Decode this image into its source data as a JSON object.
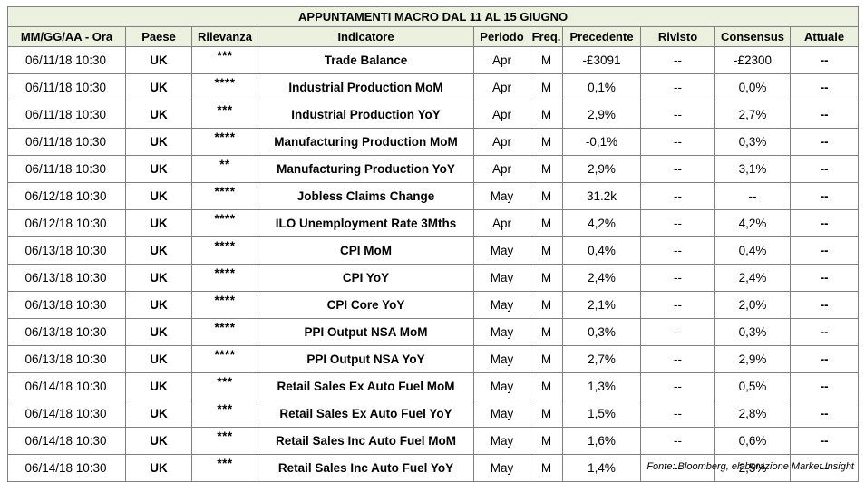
{
  "title": "APPUNTAMENTI MACRO DAL 11 AL 15 GIUGNO",
  "columns": [
    "MM/GG/AA - Ora",
    "Paese",
    "Rilevanza",
    "Indicatore",
    "Periodo",
    "Freq.",
    "Precedente",
    "Rivisto",
    "Consensus",
    "Attuale"
  ],
  "rows": [
    {
      "date": "06/11/18 10:30",
      "country": "UK",
      "relevance": "***",
      "indicator": "Trade Balance",
      "period": "Apr",
      "freq": "M",
      "previous": "-£3091",
      "revised": "--",
      "consensus": "-£2300",
      "actual": "--"
    },
    {
      "date": "06/11/18 10:30",
      "country": "UK",
      "relevance": "****",
      "indicator": "Industrial Production MoM",
      "period": "Apr",
      "freq": "M",
      "previous": "0,1%",
      "revised": "--",
      "consensus": "0,0%",
      "actual": "--"
    },
    {
      "date": "06/11/18 10:30",
      "country": "UK",
      "relevance": "***",
      "indicator": "Industrial Production YoY",
      "period": "Apr",
      "freq": "M",
      "previous": "2,9%",
      "revised": "--",
      "consensus": "2,7%",
      "actual": "--"
    },
    {
      "date": "06/11/18 10:30",
      "country": "UK",
      "relevance": "****",
      "indicator": "Manufacturing Production MoM",
      "period": "Apr",
      "freq": "M",
      "previous": "-0,1%",
      "revised": "--",
      "consensus": "0,3%",
      "actual": "--"
    },
    {
      "date": "06/11/18 10:30",
      "country": "UK",
      "relevance": "**",
      "indicator": "Manufacturing Production YoY",
      "period": "Apr",
      "freq": "M",
      "previous": "2,9%",
      "revised": "--",
      "consensus": "3,1%",
      "actual": "--"
    },
    {
      "date": "06/12/18 10:30",
      "country": "UK",
      "relevance": "****",
      "indicator": "Jobless Claims Change",
      "period": "May",
      "freq": "M",
      "previous": "31.2k",
      "revised": "--",
      "consensus": "--",
      "actual": "--"
    },
    {
      "date": "06/12/18 10:30",
      "country": "UK",
      "relevance": "****",
      "indicator": "ILO Unemployment Rate 3Mths",
      "period": "Apr",
      "freq": "M",
      "previous": "4,2%",
      "revised": "--",
      "consensus": "4,2%",
      "actual": "--"
    },
    {
      "date": "06/13/18 10:30",
      "country": "UK",
      "relevance": "****",
      "indicator": "CPI MoM",
      "period": "May",
      "freq": "M",
      "previous": "0,4%",
      "revised": "--",
      "consensus": "0,4%",
      "actual": "--"
    },
    {
      "date": "06/13/18 10:30",
      "country": "UK",
      "relevance": "****",
      "indicator": "CPI YoY",
      "period": "May",
      "freq": "M",
      "previous": "2,4%",
      "revised": "--",
      "consensus": "2,4%",
      "actual": "--"
    },
    {
      "date": "06/13/18 10:30",
      "country": "UK",
      "relevance": "****",
      "indicator": "CPI Core YoY",
      "period": "May",
      "freq": "M",
      "previous": "2,1%",
      "revised": "--",
      "consensus": "2,0%",
      "actual": "--"
    },
    {
      "date": "06/13/18 10:30",
      "country": "UK",
      "relevance": "****",
      "indicator": "PPI Output NSA MoM",
      "period": "May",
      "freq": "M",
      "previous": "0,3%",
      "revised": "--",
      "consensus": "0,3%",
      "actual": "--"
    },
    {
      "date": "06/13/18 10:30",
      "country": "UK",
      "relevance": "****",
      "indicator": "PPI Output NSA YoY",
      "period": "May",
      "freq": "M",
      "previous": "2,7%",
      "revised": "--",
      "consensus": "2,9%",
      "actual": "--"
    },
    {
      "date": "06/14/18 10:30",
      "country": "UK",
      "relevance": "***",
      "indicator": "Retail Sales Ex Auto Fuel MoM",
      "period": "May",
      "freq": "M",
      "previous": "1,3%",
      "revised": "--",
      "consensus": "0,5%",
      "actual": "--"
    },
    {
      "date": "06/14/18 10:30",
      "country": "UK",
      "relevance": "***",
      "indicator": "Retail Sales Ex Auto Fuel YoY",
      "period": "May",
      "freq": "M",
      "previous": "1,5%",
      "revised": "--",
      "consensus": "2,8%",
      "actual": "--"
    },
    {
      "date": "06/14/18 10:30",
      "country": "UK",
      "relevance": "***",
      "indicator": "Retail Sales Inc Auto Fuel MoM",
      "period": "May",
      "freq": "M",
      "previous": "1,6%",
      "revised": "--",
      "consensus": "0,6%",
      "actual": "--"
    },
    {
      "date": "06/14/18 10:30",
      "country": "UK",
      "relevance": "***",
      "indicator": "Retail Sales Inc Auto Fuel YoY",
      "period": "May",
      "freq": "M",
      "previous": "1,4%",
      "revised": "--",
      "consensus": "2,5%",
      "actual": "--"
    }
  ],
  "source": "Fonte: Bloomberg, elaborazione Market Insight",
  "colors": {
    "header_bg": "#ebf1de",
    "relevance_stars": "#ff0000",
    "border": "#7f7f7f"
  }
}
